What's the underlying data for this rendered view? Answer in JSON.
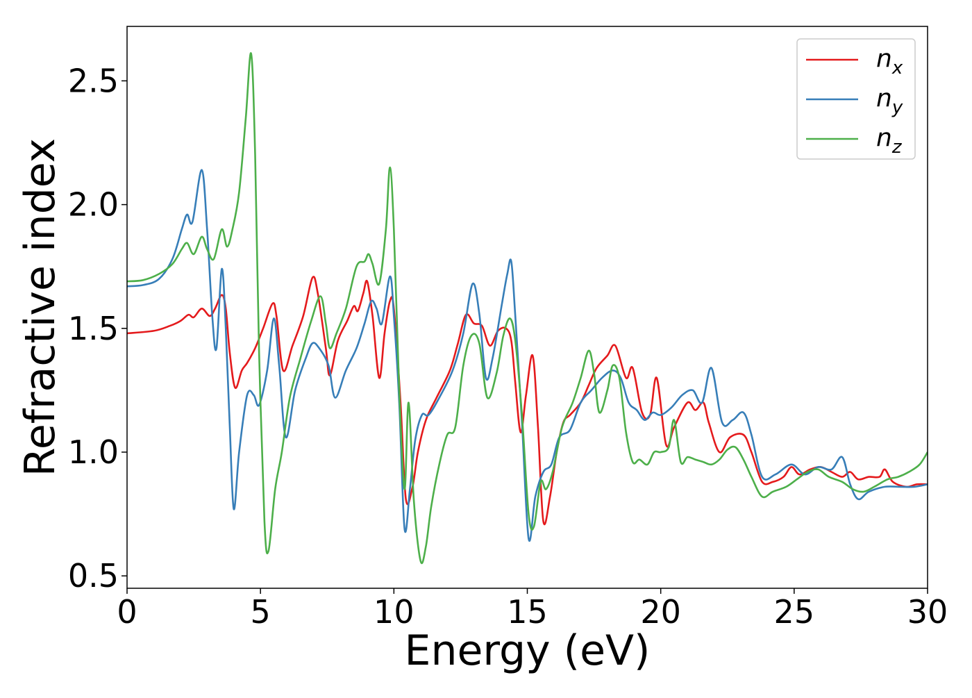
{
  "chart_data": {
    "type": "line",
    "title": "",
    "xlabel": "Energy (eV)",
    "ylabel": "Refractive index",
    "xlim": [
      0,
      30
    ],
    "ylim": [
      0.45,
      2.72
    ],
    "xticks": [
      0,
      5,
      10,
      15,
      20,
      25,
      30
    ],
    "yticks": [
      0.5,
      1.0,
      1.5,
      2.0,
      2.5
    ],
    "xtick_labels": [
      "0",
      "5",
      "10",
      "15",
      "20",
      "25",
      "30"
    ],
    "ytick_labels": [
      "0.5",
      "1.0",
      "1.5",
      "2.0",
      "2.5"
    ],
    "grid": false,
    "legend_position": "top-right",
    "series": [
      {
        "name": "n",
        "subscript": "x",
        "color": "#e41a1c",
        "points": [
          [
            0,
            1.48
          ],
          [
            1,
            1.49
          ],
          [
            1.6,
            1.51
          ],
          [
            2.0,
            1.53
          ],
          [
            2.3,
            1.555
          ],
          [
            2.5,
            1.545
          ],
          [
            2.8,
            1.58
          ],
          [
            3.1,
            1.55
          ],
          [
            3.3,
            1.58
          ],
          [
            3.55,
            1.635
          ],
          [
            3.7,
            1.58
          ],
          [
            3.85,
            1.4
          ],
          [
            4.05,
            1.26
          ],
          [
            4.3,
            1.33
          ],
          [
            4.5,
            1.36
          ],
          [
            4.8,
            1.42
          ],
          [
            5.1,
            1.5
          ],
          [
            5.45,
            1.6
          ],
          [
            5.6,
            1.55
          ],
          [
            5.85,
            1.33
          ],
          [
            6.2,
            1.43
          ],
          [
            6.6,
            1.55
          ],
          [
            6.95,
            1.705
          ],
          [
            7.15,
            1.64
          ],
          [
            7.45,
            1.42
          ],
          [
            7.6,
            1.31
          ],
          [
            7.9,
            1.45
          ],
          [
            8.25,
            1.53
          ],
          [
            8.5,
            1.59
          ],
          [
            8.65,
            1.57
          ],
          [
            8.85,
            1.64
          ],
          [
            9.0,
            1.69
          ],
          [
            9.2,
            1.55
          ],
          [
            9.45,
            1.3
          ],
          [
            9.65,
            1.48
          ],
          [
            9.85,
            1.61
          ],
          [
            10.0,
            1.58
          ],
          [
            10.25,
            1.2
          ],
          [
            10.45,
            0.81
          ],
          [
            10.7,
            0.86
          ],
          [
            10.9,
            1.0
          ],
          [
            11.2,
            1.13
          ],
          [
            11.6,
            1.22
          ],
          [
            12.1,
            1.33
          ],
          [
            12.4,
            1.44
          ],
          [
            12.7,
            1.555
          ],
          [
            13.0,
            1.52
          ],
          [
            13.3,
            1.51
          ],
          [
            13.6,
            1.43
          ],
          [
            13.9,
            1.49
          ],
          [
            14.2,
            1.5
          ],
          [
            14.4,
            1.45
          ],
          [
            14.55,
            1.28
          ],
          [
            14.75,
            1.08
          ],
          [
            14.95,
            1.23
          ],
          [
            15.2,
            1.39
          ],
          [
            15.4,
            1.1
          ],
          [
            15.6,
            0.72
          ],
          [
            15.85,
            0.82
          ],
          [
            16.1,
            1.0
          ],
          [
            16.35,
            1.12
          ],
          [
            16.6,
            1.15
          ],
          [
            17.0,
            1.2
          ],
          [
            17.3,
            1.27
          ],
          [
            17.6,
            1.34
          ],
          [
            18.0,
            1.39
          ],
          [
            18.3,
            1.43
          ],
          [
            18.7,
            1.3
          ],
          [
            18.95,
            1.34
          ],
          [
            19.3,
            1.16
          ],
          [
            19.6,
            1.15
          ],
          [
            19.85,
            1.3
          ],
          [
            20.2,
            1.03
          ],
          [
            20.5,
            1.1
          ],
          [
            21.0,
            1.2
          ],
          [
            21.3,
            1.17
          ],
          [
            21.6,
            1.2
          ],
          [
            21.8,
            1.12
          ],
          [
            22.2,
            1.0
          ],
          [
            22.6,
            1.06
          ],
          [
            23.1,
            1.07
          ],
          [
            23.4,
            1.0
          ],
          [
            23.8,
            0.88
          ],
          [
            24.2,
            0.88
          ],
          [
            24.6,
            0.9
          ],
          [
            24.9,
            0.94
          ],
          [
            25.2,
            0.91
          ],
          [
            25.6,
            0.93
          ],
          [
            26.0,
            0.94
          ],
          [
            26.4,
            0.92
          ],
          [
            26.8,
            0.9
          ],
          [
            27.1,
            0.92
          ],
          [
            27.4,
            0.89
          ],
          [
            27.8,
            0.9
          ],
          [
            28.2,
            0.9
          ],
          [
            28.4,
            0.93
          ],
          [
            28.7,
            0.88
          ],
          [
            29.2,
            0.86
          ],
          [
            29.6,
            0.87
          ],
          [
            30.0,
            0.87
          ]
        ]
      },
      {
        "name": "n",
        "subscript": "y",
        "color": "#377eb8",
        "points": [
          [
            0,
            1.67
          ],
          [
            0.6,
            1.675
          ],
          [
            1.2,
            1.7
          ],
          [
            1.7,
            1.78
          ],
          [
            2.05,
            1.9
          ],
          [
            2.25,
            1.96
          ],
          [
            2.45,
            1.93
          ],
          [
            2.8,
            2.14
          ],
          [
            3.0,
            1.9
          ],
          [
            3.2,
            1.54
          ],
          [
            3.35,
            1.42
          ],
          [
            3.55,
            1.74
          ],
          [
            3.7,
            1.5
          ],
          [
            3.85,
            1.1
          ],
          [
            4.0,
            0.77
          ],
          [
            4.2,
            1.0
          ],
          [
            4.5,
            1.23
          ],
          [
            4.75,
            1.23
          ],
          [
            4.95,
            1.19
          ],
          [
            5.25,
            1.33
          ],
          [
            5.5,
            1.54
          ],
          [
            5.7,
            1.35
          ],
          [
            5.95,
            1.06
          ],
          [
            6.3,
            1.25
          ],
          [
            6.7,
            1.38
          ],
          [
            6.95,
            1.44
          ],
          [
            7.2,
            1.42
          ],
          [
            7.55,
            1.35
          ],
          [
            7.8,
            1.22
          ],
          [
            8.2,
            1.33
          ],
          [
            8.6,
            1.42
          ],
          [
            8.9,
            1.52
          ],
          [
            9.15,
            1.61
          ],
          [
            9.35,
            1.58
          ],
          [
            9.55,
            1.52
          ],
          [
            9.85,
            1.71
          ],
          [
            10.0,
            1.55
          ],
          [
            10.2,
            1.2
          ],
          [
            10.4,
            0.69
          ],
          [
            10.6,
            0.85
          ],
          [
            10.8,
            1.05
          ],
          [
            11.05,
            1.15
          ],
          [
            11.3,
            1.15
          ],
          [
            11.7,
            1.22
          ],
          [
            12.2,
            1.33
          ],
          [
            12.6,
            1.48
          ],
          [
            12.95,
            1.68
          ],
          [
            13.2,
            1.56
          ],
          [
            13.45,
            1.3
          ],
          [
            13.7,
            1.38
          ],
          [
            14.05,
            1.6
          ],
          [
            14.25,
            1.72
          ],
          [
            14.4,
            1.77
          ],
          [
            14.55,
            1.55
          ],
          [
            14.8,
            1.12
          ],
          [
            15.05,
            0.65
          ],
          [
            15.3,
            0.82
          ],
          [
            15.6,
            0.92
          ],
          [
            15.9,
            0.95
          ],
          [
            16.2,
            1.06
          ],
          [
            16.6,
            1.09
          ],
          [
            17.0,
            1.2
          ],
          [
            17.4,
            1.25
          ],
          [
            17.8,
            1.3
          ],
          [
            18.2,
            1.33
          ],
          [
            18.5,
            1.3
          ],
          [
            18.8,
            1.2
          ],
          [
            19.1,
            1.17
          ],
          [
            19.4,
            1.13
          ],
          [
            19.7,
            1.16
          ],
          [
            20.0,
            1.15
          ],
          [
            20.4,
            1.18
          ],
          [
            20.8,
            1.23
          ],
          [
            21.2,
            1.25
          ],
          [
            21.55,
            1.2
          ],
          [
            21.9,
            1.34
          ],
          [
            22.3,
            1.12
          ],
          [
            22.7,
            1.13
          ],
          [
            23.1,
            1.16
          ],
          [
            23.4,
            1.07
          ],
          [
            23.8,
            0.9
          ],
          [
            24.3,
            0.91
          ],
          [
            24.9,
            0.95
          ],
          [
            25.4,
            0.91
          ],
          [
            25.9,
            0.94
          ],
          [
            26.4,
            0.93
          ],
          [
            26.8,
            0.98
          ],
          [
            27.1,
            0.87
          ],
          [
            27.4,
            0.81
          ],
          [
            27.8,
            0.84
          ],
          [
            28.4,
            0.86
          ],
          [
            29.0,
            0.86
          ],
          [
            29.5,
            0.86
          ],
          [
            30.0,
            0.87
          ]
        ]
      },
      {
        "name": "n",
        "subscript": "z",
        "color": "#4daf4a",
        "points": [
          [
            0,
            1.69
          ],
          [
            0.6,
            1.695
          ],
          [
            1.2,
            1.72
          ],
          [
            1.7,
            1.76
          ],
          [
            2.05,
            1.82
          ],
          [
            2.25,
            1.845
          ],
          [
            2.5,
            1.8
          ],
          [
            2.8,
            1.87
          ],
          [
            3.0,
            1.82
          ],
          [
            3.25,
            1.78
          ],
          [
            3.55,
            1.9
          ],
          [
            3.75,
            1.83
          ],
          [
            3.95,
            1.9
          ],
          [
            4.2,
            2.05
          ],
          [
            4.45,
            2.35
          ],
          [
            4.65,
            2.61
          ],
          [
            4.8,
            2.2
          ],
          [
            4.95,
            1.4
          ],
          [
            5.15,
            0.72
          ],
          [
            5.3,
            0.6
          ],
          [
            5.55,
            0.85
          ],
          [
            5.8,
            1.0
          ],
          [
            6.1,
            1.22
          ],
          [
            6.5,
            1.38
          ],
          [
            6.9,
            1.53
          ],
          [
            7.25,
            1.63
          ],
          [
            7.45,
            1.52
          ],
          [
            7.6,
            1.42
          ],
          [
            7.85,
            1.48
          ],
          [
            8.2,
            1.58
          ],
          [
            8.6,
            1.75
          ],
          [
            8.9,
            1.77
          ],
          [
            9.05,
            1.8
          ],
          [
            9.2,
            1.76
          ],
          [
            9.45,
            1.68
          ],
          [
            9.7,
            1.9
          ],
          [
            9.85,
            2.15
          ],
          [
            10.0,
            1.9
          ],
          [
            10.2,
            1.25
          ],
          [
            10.4,
            0.85
          ],
          [
            10.55,
            1.2
          ],
          [
            10.75,
            0.8
          ],
          [
            11.0,
            0.56
          ],
          [
            11.2,
            0.62
          ],
          [
            11.4,
            0.78
          ],
          [
            11.7,
            0.95
          ],
          [
            12.0,
            1.07
          ],
          [
            12.3,
            1.1
          ],
          [
            12.6,
            1.35
          ],
          [
            12.9,
            1.47
          ],
          [
            13.2,
            1.44
          ],
          [
            13.5,
            1.22
          ],
          [
            13.85,
            1.32
          ],
          [
            14.1,
            1.47
          ],
          [
            14.35,
            1.54
          ],
          [
            14.55,
            1.45
          ],
          [
            14.8,
            1.15
          ],
          [
            15.05,
            0.75
          ],
          [
            15.25,
            0.7
          ],
          [
            15.5,
            0.88
          ],
          [
            15.7,
            0.85
          ],
          [
            15.95,
            0.92
          ],
          [
            16.3,
            1.1
          ],
          [
            16.7,
            1.2
          ],
          [
            17.0,
            1.3
          ],
          [
            17.3,
            1.41
          ],
          [
            17.5,
            1.32
          ],
          [
            17.7,
            1.16
          ],
          [
            18.0,
            1.25
          ],
          [
            18.2,
            1.35
          ],
          [
            18.45,
            1.3
          ],
          [
            18.7,
            1.08
          ],
          [
            18.95,
            0.96
          ],
          [
            19.2,
            0.97
          ],
          [
            19.5,
            0.95
          ],
          [
            19.75,
            1.0
          ],
          [
            20.0,
            1.0
          ],
          [
            20.3,
            1.02
          ],
          [
            20.5,
            1.13
          ],
          [
            20.75,
            0.96
          ],
          [
            21.0,
            0.98
          ],
          [
            21.3,
            0.97
          ],
          [
            21.6,
            0.96
          ],
          [
            21.9,
            0.95
          ],
          [
            22.2,
            0.97
          ],
          [
            22.5,
            1.01
          ],
          [
            22.8,
            1.02
          ],
          [
            23.1,
            0.97
          ],
          [
            23.4,
            0.9
          ],
          [
            23.8,
            0.82
          ],
          [
            24.2,
            0.84
          ],
          [
            24.7,
            0.86
          ],
          [
            25.1,
            0.89
          ],
          [
            25.5,
            0.92
          ],
          [
            25.9,
            0.93
          ],
          [
            26.3,
            0.9
          ],
          [
            26.8,
            0.88
          ],
          [
            27.2,
            0.85
          ],
          [
            27.6,
            0.84
          ],
          [
            28.0,
            0.86
          ],
          [
            28.5,
            0.89
          ],
          [
            28.9,
            0.9
          ],
          [
            29.3,
            0.92
          ],
          [
            29.7,
            0.95
          ],
          [
            30.0,
            1.0
          ]
        ]
      }
    ]
  }
}
